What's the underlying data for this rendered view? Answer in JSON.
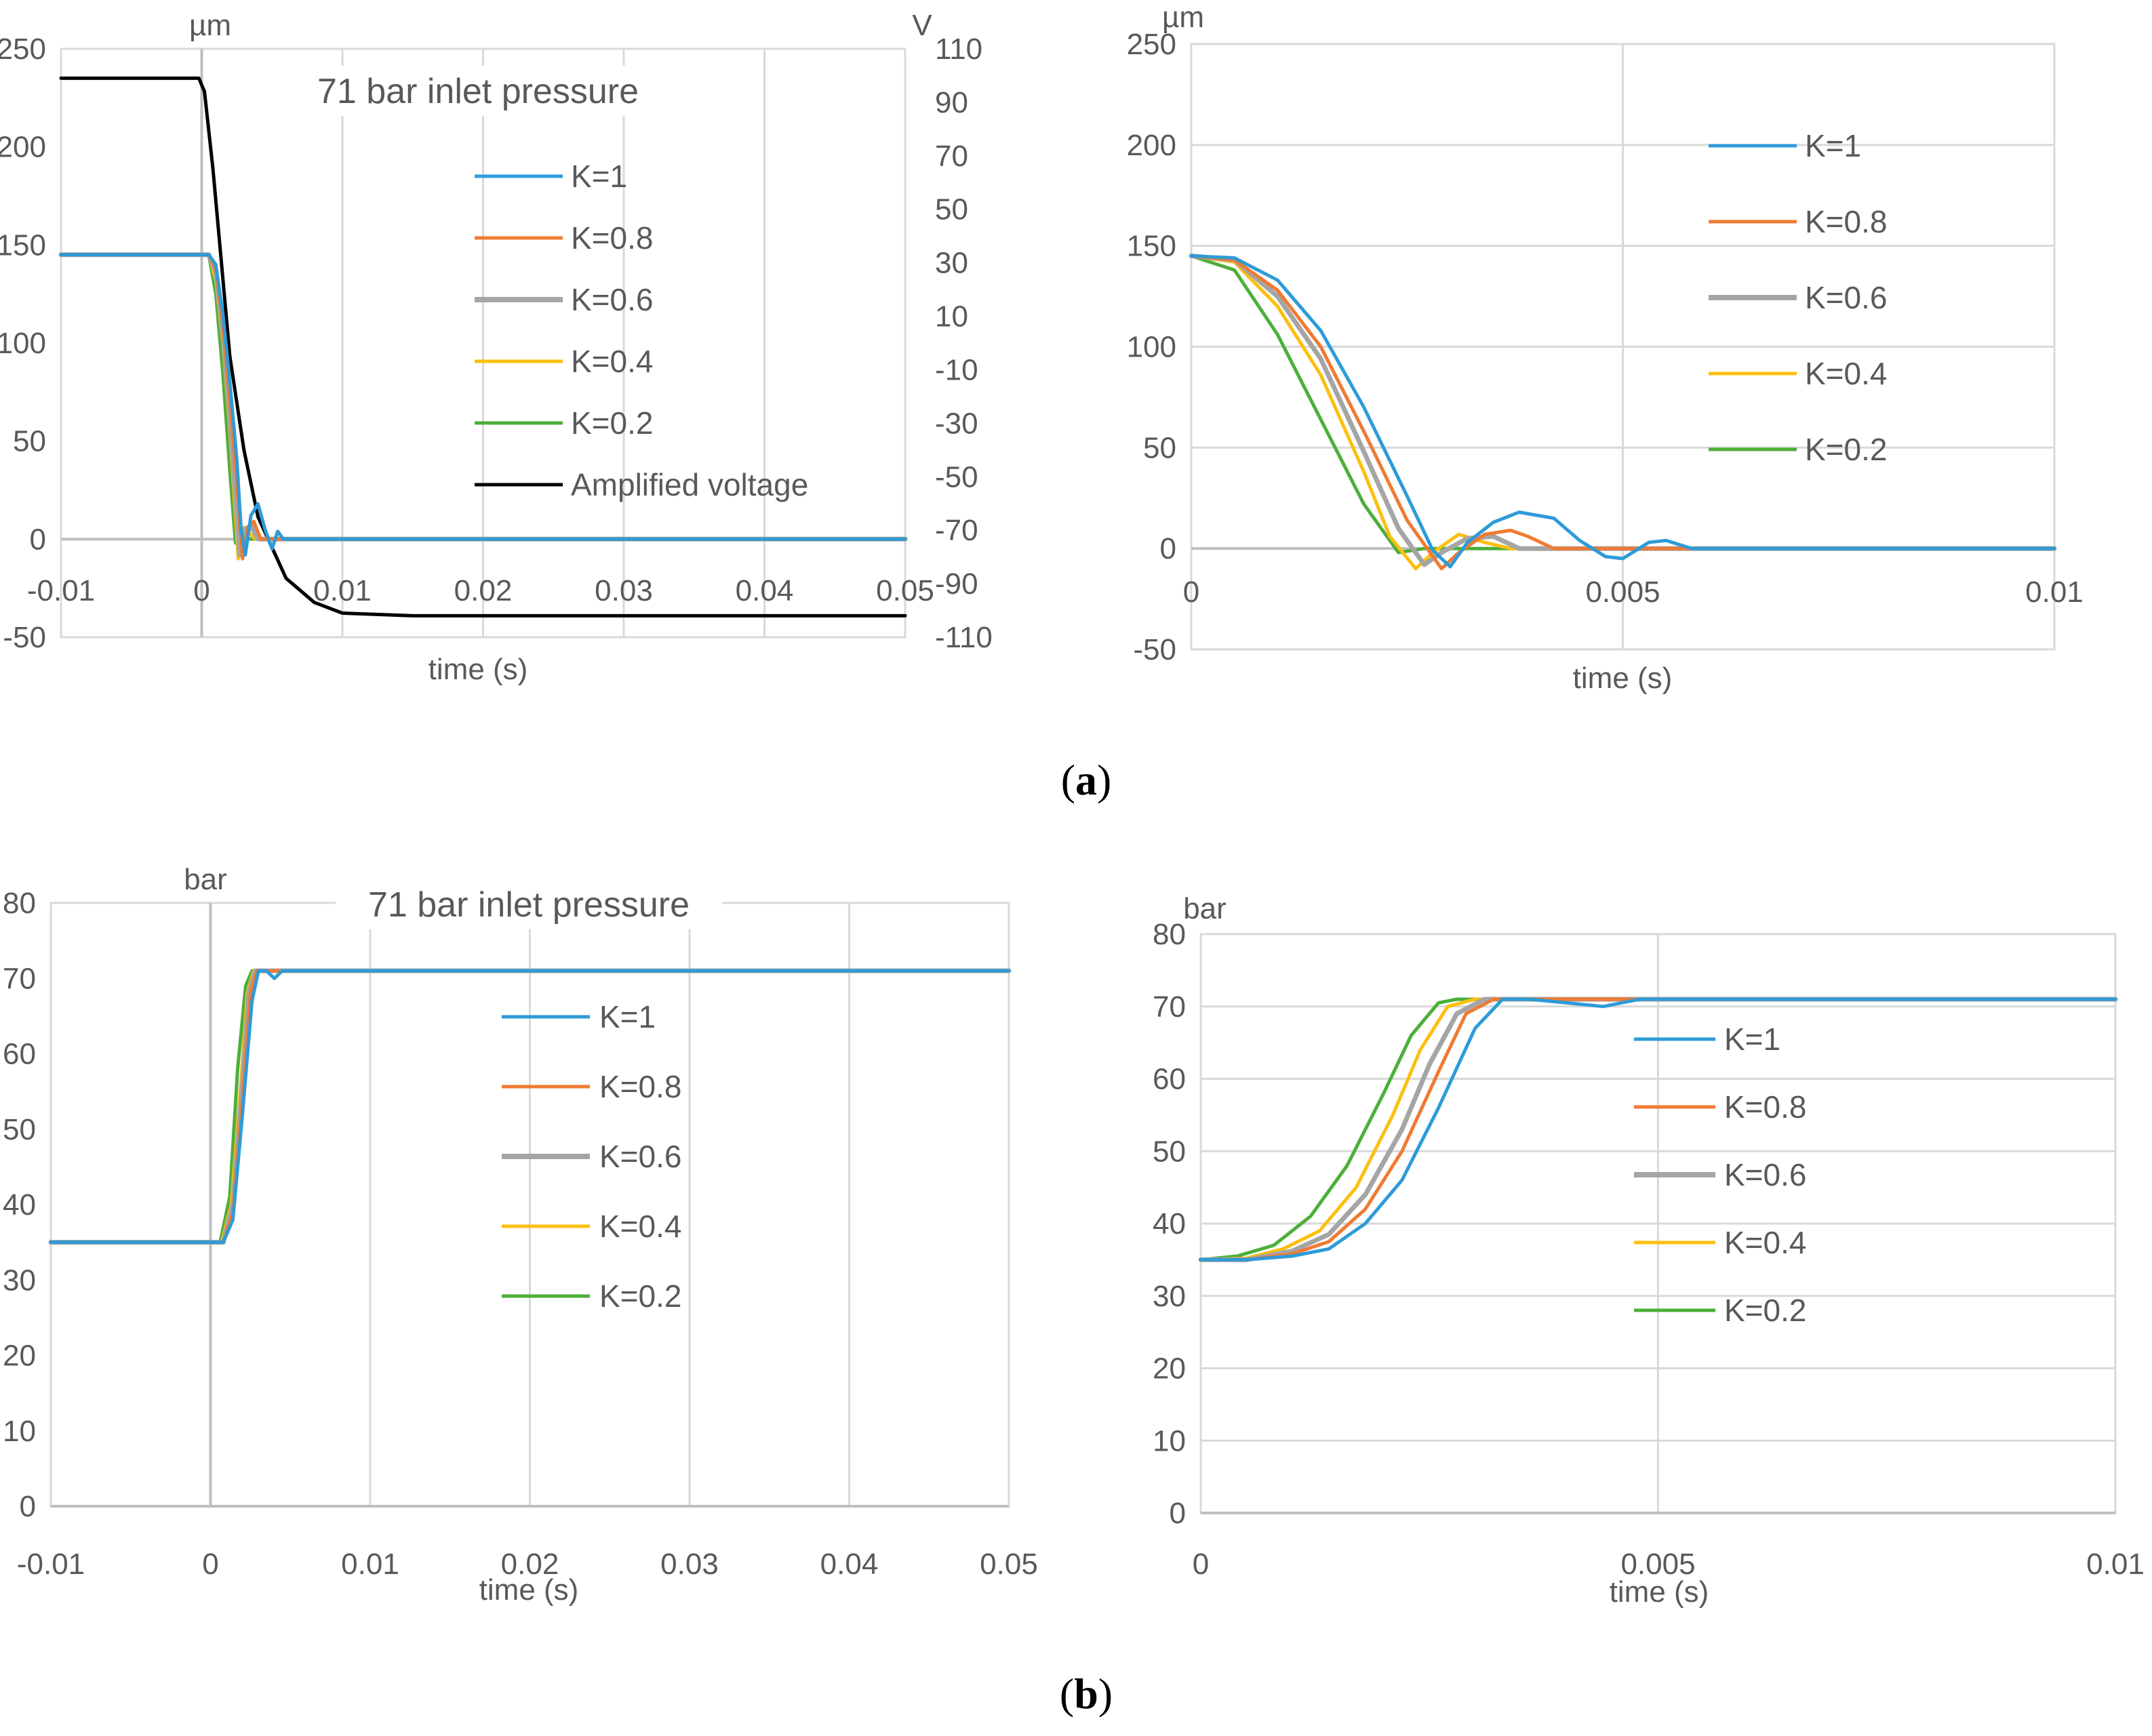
{
  "caption_a": {
    "open": "(",
    "letter": "a",
    "close": ")"
  },
  "caption_b": {
    "open": "(",
    "letter": "b",
    "close": ")"
  },
  "chart_data": [
    {
      "id": "a_left",
      "type": "line",
      "title": "71 bar inlet pressure",
      "xlabel": "time (s)",
      "ylabel": "µm",
      "y2label": "V",
      "xlim": [
        -0.01,
        0.05
      ],
      "ylim": [
        -50,
        250
      ],
      "y2lim": [
        -110,
        110
      ],
      "xticks": [
        -0.01,
        0,
        0.01,
        0.02,
        0.03,
        0.04,
        0.05
      ],
      "xtick_labels": [
        "-0.01",
        "0",
        "0.01",
        "0.02",
        "0.03",
        "0.04",
        "0.05"
      ],
      "yticks": [
        -50,
        0,
        50,
        100,
        150,
        200,
        250
      ],
      "ytick_labels": [
        "-50",
        "0",
        "50",
        "100",
        "150",
        "200",
        "250"
      ],
      "y2ticks": [
        -110,
        -90,
        -70,
        -50,
        -30,
        -10,
        10,
        30,
        50,
        70,
        90,
        110
      ],
      "y2tick_labels": [
        "-110",
        "-90",
        "-70",
        "-50",
        "-30",
        "-10",
        "10",
        "30",
        "50",
        "70",
        "90",
        "110"
      ],
      "grid": "vertical",
      "legend_position": "right",
      "series": [
        {
          "name": "K=1",
          "color": "#2E9BD8",
          "x": [
            -0.01,
            0.0005,
            0.001,
            0.0015,
            0.002,
            0.0025,
            0.0028,
            0.0031,
            0.0035,
            0.004,
            0.0045,
            0.005,
            0.0054,
            0.0058,
            0.05
          ],
          "y": [
            145,
            145,
            140,
            115,
            80,
            40,
            5,
            -8,
            12,
            18,
            5,
            -5,
            4,
            0,
            0
          ]
        },
        {
          "name": "K=0.8",
          "color": "#F07A32",
          "x": [
            -0.01,
            0.0005,
            0.001,
            0.0015,
            0.002,
            0.0025,
            0.0029,
            0.0033,
            0.0037,
            0.0042,
            0.05
          ],
          "y": [
            145,
            145,
            138,
            110,
            70,
            28,
            -10,
            6,
            9,
            0,
            0
          ]
        },
        {
          "name": "K=0.6",
          "color": "#A5A5A5",
          "x": [
            -0.01,
            0.0005,
            0.001,
            0.0015,
            0.002,
            0.0027,
            0.0031,
            0.0035,
            0.004,
            0.05
          ],
          "y": [
            145,
            145,
            136,
            105,
            62,
            -8,
            5,
            7,
            0,
            0
          ]
        },
        {
          "name": "K=0.4",
          "color": "#FDBF0F",
          "x": [
            -0.01,
            0.0005,
            0.001,
            0.0015,
            0.002,
            0.0026,
            0.003,
            0.0034,
            0.0038,
            0.05
          ],
          "y": [
            145,
            145,
            132,
            100,
            55,
            -10,
            6,
            3,
            0,
            0
          ]
        },
        {
          "name": "K=0.2",
          "color": "#4CAF39",
          "x": [
            -0.01,
            0.0005,
            0.001,
            0.0015,
            0.002,
            0.0024,
            0.003,
            0.05
          ],
          "y": [
            145,
            145,
            125,
            85,
            35,
            -2,
            0,
            0
          ]
        },
        {
          "name": "Amplified voltage",
          "color": "#000000",
          "axis": "right",
          "x": [
            -0.01,
            -0.0002,
            0.0002,
            0.0008,
            0.0014,
            0.002,
            0.003,
            0.004,
            0.006,
            0.008,
            0.01,
            0.015,
            0.02,
            0.03,
            0.04,
            0.05
          ],
          "y": [
            99,
            99,
            94,
            65,
            30,
            -5,
            -40,
            -65,
            -88,
            -97,
            -101,
            -102,
            -102,
            -102,
            -102,
            -102
          ]
        }
      ]
    },
    {
      "id": "a_right",
      "type": "line",
      "title": "",
      "xlabel": "time (s)",
      "ylabel": "µm",
      "xlim": [
        0,
        0.01
      ],
      "ylim": [
        -50,
        250
      ],
      "xticks": [
        0,
        0.005,
        0.01
      ],
      "xtick_labels": [
        "0",
        "0.005",
        "0.01"
      ],
      "yticks": [
        -50,
        0,
        50,
        100,
        150,
        200,
        250
      ],
      "ytick_labels": [
        "-50",
        "0",
        "50",
        "100",
        "150",
        "200",
        "250"
      ],
      "grid": "both",
      "legend_position": "right",
      "series": [
        {
          "name": "K=1",
          "color": "#2E9BD8",
          "x": [
            0,
            0.0005,
            0.001,
            0.0015,
            0.002,
            0.0025,
            0.0028,
            0.003,
            0.0032,
            0.0035,
            0.0038,
            0.0042,
            0.0045,
            0.0048,
            0.005,
            0.0053,
            0.0055,
            0.0058,
            0.006,
            0.01
          ],
          "y": [
            145,
            144,
            133,
            108,
            70,
            26,
            -1,
            -9,
            3,
            13,
            18,
            15,
            4,
            -4,
            -5,
            3,
            4,
            0,
            0,
            0
          ]
        },
        {
          "name": "K=0.8",
          "color": "#F07A32",
          "x": [
            0,
            0.0005,
            0.001,
            0.0015,
            0.002,
            0.0025,
            0.0029,
            0.0031,
            0.0034,
            0.0037,
            0.0039,
            0.0042,
            0.0045,
            0.01
          ],
          "y": [
            145,
            143,
            128,
            100,
            58,
            14,
            -10,
            -2,
            7,
            9,
            6,
            0,
            0,
            0
          ]
        },
        {
          "name": "K=0.6",
          "color": "#A5A5A5",
          "x": [
            0,
            0.0005,
            0.001,
            0.0015,
            0.002,
            0.0024,
            0.0027,
            0.0029,
            0.0032,
            0.0035,
            0.0038,
            0.01
          ],
          "y": [
            145,
            143,
            125,
            94,
            48,
            10,
            -8,
            -2,
            5,
            6,
            0,
            0
          ]
        },
        {
          "name": "K=0.4",
          "color": "#FDBF0F",
          "x": [
            0,
            0.0005,
            0.001,
            0.0015,
            0.002,
            0.0023,
            0.0026,
            0.0028,
            0.0031,
            0.0034,
            0.0037,
            0.01
          ],
          "y": [
            145,
            142,
            120,
            86,
            38,
            6,
            -10,
            -2,
            7,
            3,
            0,
            0
          ]
        },
        {
          "name": "K=0.2",
          "color": "#4CAF39",
          "x": [
            0,
            0.0005,
            0.001,
            0.0015,
            0.002,
            0.0024,
            0.0027,
            0.01
          ],
          "y": [
            145,
            138,
            106,
            64,
            22,
            -2,
            0,
            0
          ]
        }
      ]
    },
    {
      "id": "b_left",
      "type": "line",
      "title": "71 bar inlet pressure",
      "xlabel": "time (s)",
      "ylabel": "bar",
      "xlim": [
        -0.01,
        0.05
      ],
      "ylim": [
        0,
        80
      ],
      "xticks": [
        -0.01,
        0,
        0.01,
        0.02,
        0.03,
        0.04,
        0.05
      ],
      "xtick_labels": [
        "-0.01",
        "0",
        "0.01",
        "0.02",
        "0.03",
        "0.04",
        "0.05"
      ],
      "yticks": [
        0,
        10,
        20,
        30,
        40,
        50,
        60,
        70,
        80
      ],
      "ytick_labels": [
        "0",
        "10",
        "20",
        "30",
        "40",
        "50",
        "60",
        "70",
        "80"
      ],
      "grid": "vertical",
      "legend_position": "right",
      "series": [
        {
          "name": "K=1",
          "color": "#2E9BD8",
          "x": [
            -0.01,
            0.0008,
            0.0014,
            0.002,
            0.0026,
            0.003,
            0.0035,
            0.004,
            0.0045,
            0.05
          ],
          "y": [
            35,
            35,
            38,
            52,
            67,
            71,
            71,
            70,
            71,
            71
          ]
        },
        {
          "name": "K=0.8",
          "color": "#F07A32",
          "x": [
            -0.01,
            0.0008,
            0.0014,
            0.002,
            0.0025,
            0.0029,
            0.05
          ],
          "y": [
            35,
            35,
            39,
            54,
            68,
            71,
            71
          ]
        },
        {
          "name": "K=0.6",
          "color": "#A5A5A5",
          "x": [
            -0.01,
            0.0008,
            0.0014,
            0.002,
            0.0024,
            0.0028,
            0.05
          ],
          "y": [
            35,
            35,
            40,
            56,
            68,
            71,
            71
          ]
        },
        {
          "name": "K=0.4",
          "color": "#FDBF0F",
          "x": [
            -0.01,
            0.0007,
            0.0013,
            0.0019,
            0.0023,
            0.0027,
            0.05
          ],
          "y": [
            35,
            35,
            40,
            56,
            68,
            71,
            71
          ]
        },
        {
          "name": "K=0.2",
          "color": "#4CAF39",
          "x": [
            -0.01,
            0.0006,
            0.0012,
            0.0017,
            0.0022,
            0.0026,
            0.05
          ],
          "y": [
            35,
            35,
            41,
            58,
            69,
            71,
            71
          ]
        }
      ]
    },
    {
      "id": "b_right",
      "type": "line",
      "title": "",
      "xlabel": "time (s)",
      "ylabel": "bar",
      "xlim": [
        0,
        0.01
      ],
      "ylim": [
        0,
        80
      ],
      "xticks": [
        0,
        0.005,
        0.01
      ],
      "xtick_labels": [
        "0",
        "0.005",
        "0.01"
      ],
      "yticks": [
        0,
        10,
        20,
        30,
        40,
        50,
        60,
        70,
        80
      ],
      "ytick_labels": [
        "0",
        "10",
        "20",
        "30",
        "40",
        "50",
        "60",
        "70",
        "80"
      ],
      "grid": "both",
      "legend_position": "right",
      "series": [
        {
          "name": "K=1",
          "color": "#2E9BD8",
          "x": [
            0,
            0.0005,
            0.001,
            0.0014,
            0.0018,
            0.0022,
            0.0026,
            0.003,
            0.0033,
            0.0036,
            0.004,
            0.0044,
            0.0048,
            0.0052,
            0.0056,
            0.01
          ],
          "y": [
            35,
            35,
            35.5,
            36.5,
            40,
            46,
            56,
            67,
            71,
            71,
            70.5,
            70,
            71,
            71,
            71,
            71
          ]
        },
        {
          "name": "K=0.8",
          "color": "#F07A32",
          "x": [
            0,
            0.0005,
            0.001,
            0.0014,
            0.0018,
            0.0022,
            0.0026,
            0.0029,
            0.0032,
            0.004,
            0.005,
            0.01
          ],
          "y": [
            35,
            35,
            35.8,
            37.5,
            42,
            50,
            61,
            69,
            71,
            71,
            71,
            71
          ]
        },
        {
          "name": "K=0.6",
          "color": "#A5A5A5",
          "x": [
            0,
            0.0005,
            0.001,
            0.0014,
            0.0018,
            0.0022,
            0.0025,
            0.0028,
            0.0031,
            0.01
          ],
          "y": [
            35,
            35,
            36.2,
            38.5,
            44,
            53,
            62,
            69,
            71,
            71
          ]
        },
        {
          "name": "K=0.4",
          "color": "#FDBF0F",
          "x": [
            0,
            0.0005,
            0.0009,
            0.0013,
            0.0017,
            0.0021,
            0.0024,
            0.0027,
            0.003,
            0.01
          ],
          "y": [
            35,
            35.2,
            36.5,
            39,
            45,
            55,
            64,
            70,
            71,
            71
          ]
        },
        {
          "name": "K=0.2",
          "color": "#4CAF39",
          "x": [
            0,
            0.0004,
            0.0008,
            0.0012,
            0.0016,
            0.002,
            0.0023,
            0.0026,
            0.0028,
            0.01
          ],
          "y": [
            35,
            35.5,
            37,
            41,
            48,
            58,
            66,
            70.5,
            71,
            71
          ]
        }
      ]
    }
  ]
}
